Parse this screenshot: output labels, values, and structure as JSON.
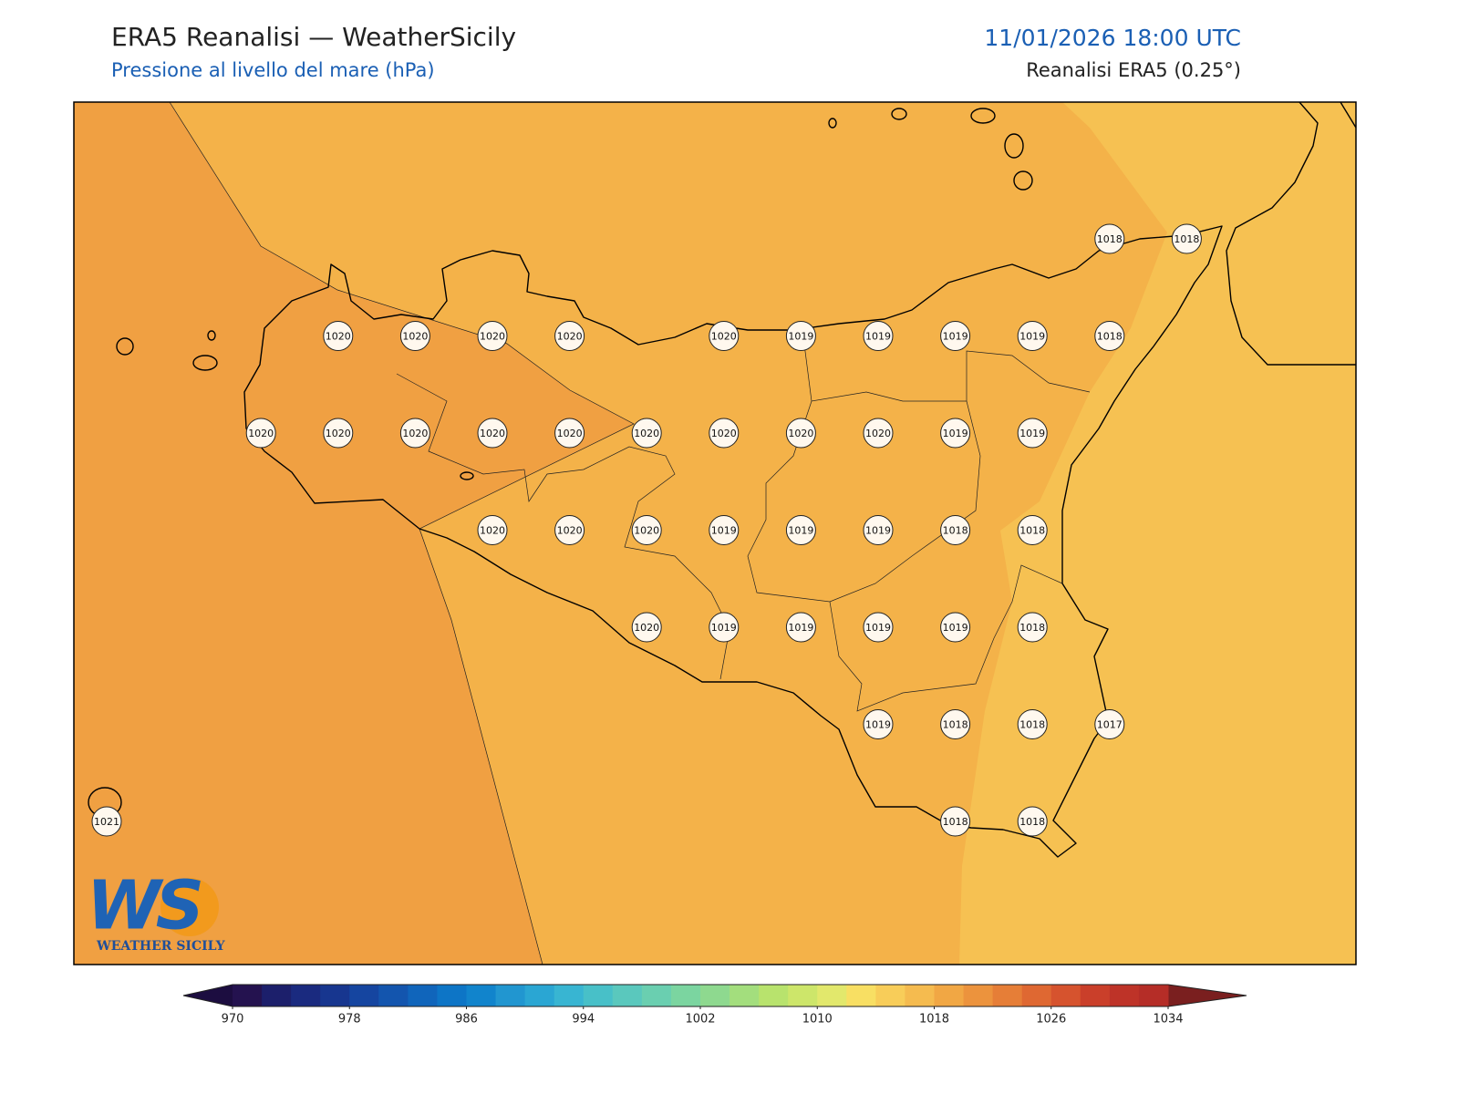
{
  "header": {
    "title": "ERA5 Reanalisi — WeatherSicily",
    "subtitle": "Pressione al livello del mare (hPa)",
    "datetime": "11/01/2026 18:00 UTC",
    "source": "Reanalisi ERA5 (0.25°)"
  },
  "map": {
    "pressure_labels": [
      [
        null,
        null,
        null,
        null,
        null,
        null,
        null,
        null,
        null,
        null,
        null,
        null,
        null,
        1018,
        1018
      ],
      [
        null,
        null,
        null,
        1020,
        1020,
        1020,
        1020,
        null,
        1020,
        1019,
        1019,
        1019,
        1019,
        1018,
        null
      ],
      [
        null,
        null,
        1020,
        1020,
        1020,
        1020,
        1020,
        1020,
        1020,
        1020,
        1020,
        1019,
        1019,
        null,
        null
      ],
      [
        null,
        null,
        null,
        null,
        null,
        1020,
        1020,
        1020,
        1019,
        1019,
        1019,
        1018,
        1018,
        null,
        null
      ],
      [
        null,
        null,
        null,
        null,
        null,
        null,
        null,
        1020,
        1019,
        1019,
        1019,
        1019,
        1018,
        null,
        null
      ],
      [
        null,
        null,
        null,
        null,
        null,
        null,
        null,
        null,
        null,
        null,
        1019,
        1018,
        1018,
        1017,
        null
      ],
      [
        1021,
        null,
        null,
        null,
        null,
        null,
        null,
        null,
        null,
        null,
        null,
        1018,
        1018,
        null,
        null
      ]
    ]
  },
  "colorbar": {
    "lim": [
      970,
      1034
    ],
    "ticks": [
      970,
      978,
      986,
      994,
      1002,
      1010,
      1018,
      1026,
      1034
    ],
    "colors": [
      "#24124f",
      "#1c1f6b",
      "#1a2a7f",
      "#17368f",
      "#1545a0",
      "#1355ae",
      "#1065bb",
      "#0d75c6",
      "#1184cc",
      "#2196d0",
      "#2aa6d3",
      "#38b5d2",
      "#48c0c8",
      "#5ac8bd",
      "#6acfb0",
      "#7bd5a0",
      "#8ed98f",
      "#a3de7d",
      "#b8e36d",
      "#cde66a",
      "#e2e86c",
      "#f8df63",
      "#f8cd59",
      "#f5bb4f",
      "#f1a744",
      "#ec933d",
      "#e67e37",
      "#df6832",
      "#d6532e",
      "#ca3f2a",
      "#be3328",
      "#b52d27"
    ],
    "under_color": "#1c0d40",
    "over_color": "#7a1f1f"
  },
  "logo": {
    "text": "WS",
    "caption": "WEATHER SICILY"
  }
}
